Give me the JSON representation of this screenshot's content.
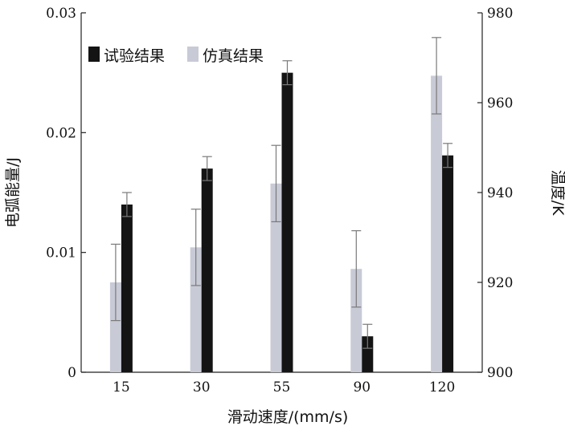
{
  "chart_data": {
    "type": "bar",
    "categories": [
      "15",
      "30",
      "55",
      "90",
      "120"
    ],
    "xlabel": "滑动速度/(mm/s)",
    "ylabel_left": "电弧能量/J",
    "ylabel_right": "温度/K",
    "ylim_left": [
      0,
      0.03
    ],
    "ylim_right": [
      900,
      980
    ],
    "yticks_left": [
      "0",
      "0.01",
      "0.02",
      "0.03"
    ],
    "yticks_right": [
      "900",
      "920",
      "940",
      "960",
      "980"
    ],
    "legend_position": "top-left",
    "grid": false,
    "series": [
      {
        "name": "试验结果",
        "axis": "left",
        "color": "#141414",
        "values": [
          0.014,
          0.017,
          0.025,
          0.003,
          0.0181
        ],
        "err": [
          0.001,
          0.001,
          0.001,
          0.001,
          0.001
        ]
      },
      {
        "name": "仿真结果",
        "axis": "right",
        "color": "#c8cad6",
        "values": [
          920,
          927.8,
          942,
          923,
          966
        ],
        "err": [
          8.5,
          8.5,
          8.5,
          8.5,
          8.5
        ]
      }
    ]
  }
}
